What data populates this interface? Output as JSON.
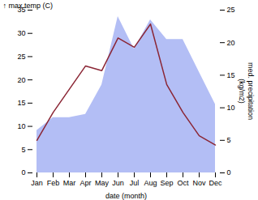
{
  "chart_data": {
    "type": "line",
    "categories": [
      "Jan",
      "Feb",
      "Mar",
      "Apr",
      "May",
      "Jun",
      "Jul",
      "Aug",
      "Sep",
      "Oct",
      "Nov",
      "Dec"
    ],
    "series": [
      {
        "type": "line",
        "color": "#8b2635",
        "values": [
          7,
          13,
          18,
          23,
          22,
          29,
          27,
          32,
          19,
          13,
          8,
          6
        ]
      },
      {
        "type": "area",
        "color": "#b3bef5",
        "axis": "y2",
        "values": [
          6.5,
          8.5,
          8.5,
          9.0,
          13.5,
          24.0,
          19.0,
          23.5,
          20.5,
          20.5,
          15.5,
          10.5
        ]
      }
    ],
    "xlabel": "date (month)",
    "ylabel": "max temp (C)",
    "y2label": "med. precipitation\n(kg/m2)",
    "ylim": [
      0,
      35
    ],
    "yticks": [
      0,
      5,
      10,
      15,
      20,
      25,
      30,
      35
    ],
    "y2lim": [
      0,
      25
    ],
    "y2ticks": [
      0,
      5,
      10,
      15,
      20,
      25
    ]
  }
}
